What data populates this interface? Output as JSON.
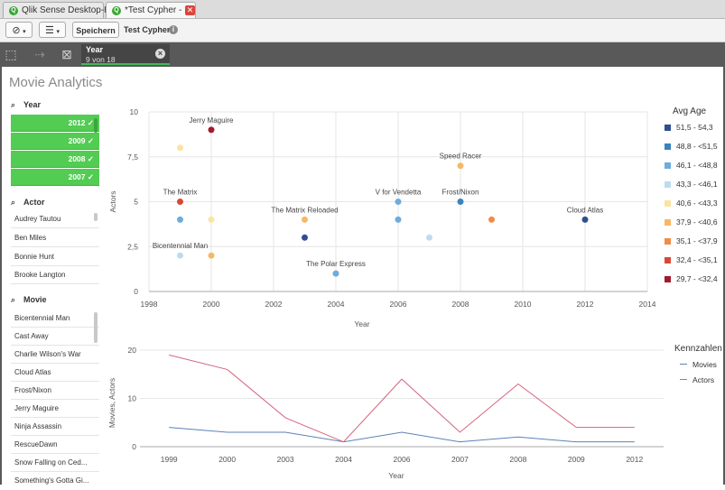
{
  "browser_tabs": [
    {
      "label": "Qlik Sense Desktop-Hub",
      "active": false
    },
    {
      "label": "*Test Cypher - ...",
      "active": true
    }
  ],
  "toolbar": {
    "save_label": "Speichern",
    "app_title": "Test Cypher"
  },
  "selection": {
    "field": "Year",
    "value": "9 von 18"
  },
  "sheet_title": "Movie Analytics",
  "filters": {
    "year": {
      "title": "Year",
      "selected": [
        "2012",
        "2009",
        "2008",
        "2007"
      ]
    },
    "actor": {
      "title": "Actor",
      "items": [
        "Audrey Tautou",
        "Ben Miles",
        "Bonnie Hunt",
        "Brooke Langton"
      ]
    },
    "movie": {
      "title": "Movie",
      "items": [
        "Bicentennial Man",
        "Cast Away",
        "Charlie Wilson's War",
        "Cloud Atlas",
        "Frost/Nixon",
        "Jerry Maguire",
        "Ninja Assassin",
        "RescueDawn",
        "Snow Falling on Ced...",
        "Something's Gotta Gi..."
      ]
    }
  },
  "colors": {
    "selected_green": "#52cc52",
    "movies_line": "#5b82b8",
    "actors_line": "#d4657f"
  },
  "chart_data": [
    {
      "type": "scatter",
      "title": "",
      "xlabel": "Year",
      "ylabel": "Actors",
      "xlim": [
        1998,
        2014
      ],
      "ylim": [
        0,
        10
      ],
      "x_ticks": [
        "1998",
        "2000",
        "2002",
        "2004",
        "2006",
        "2008",
        "2010",
        "2012",
        "2014"
      ],
      "y_ticks": [
        "0",
        "2,5",
        "5",
        "7,5",
        "10"
      ],
      "legend": {
        "title": "Avg Age",
        "items": [
          {
            "label": "51,5 - 54,3",
            "color": "#2f4f8f"
          },
          {
            "label": "48,8 - <51,5",
            "color": "#3a83be"
          },
          {
            "label": "46,1 - <48,8",
            "color": "#6eacdc"
          },
          {
            "label": "43,3 - <46,1",
            "color": "#bcdcf0"
          },
          {
            "label": "40,6 - <43,3",
            "color": "#fde3a1"
          },
          {
            "label": "37,9 - <40,6",
            "color": "#f7b865"
          },
          {
            "label": "35,1 - <37,9",
            "color": "#ef8c4b"
          },
          {
            "label": "32,4 - <35,1",
            "color": "#d94734"
          },
          {
            "label": "29,7 - <32,4",
            "color": "#a31a2e"
          }
        ]
      },
      "points": [
        {
          "x": 2000,
          "y": 9,
          "label": "Jerry Maguire",
          "color": "#a31a2e"
        },
        {
          "x": 1999,
          "y": 8,
          "label": "",
          "color": "#fde3a1"
        },
        {
          "x": 1999,
          "y": 5,
          "label": "The Matrix",
          "color": "#d94734"
        },
        {
          "x": 1999,
          "y": 4,
          "label": "",
          "color": "#6eacdc"
        },
        {
          "x": 2000,
          "y": 4,
          "label": "",
          "color": "#fde3a1"
        },
        {
          "x": 1999,
          "y": 2,
          "label": "Bicentennial Man",
          "color": "#bcdcf0"
        },
        {
          "x": 2000,
          "y": 2,
          "label": "",
          "color": "#f7b865"
        },
        {
          "x": 2003,
          "y": 4,
          "label": "The Matrix Reloaded",
          "color": "#f7b865"
        },
        {
          "x": 2003,
          "y": 3,
          "label": "",
          "color": "#2f4f8f"
        },
        {
          "x": 2004,
          "y": 1,
          "label": "The Polar Express",
          "color": "#6eacdc"
        },
        {
          "x": 2006,
          "y": 5,
          "label": "V for Vendetta",
          "color": "#6eacdc"
        },
        {
          "x": 2006,
          "y": 4,
          "label": "",
          "color": "#6eacdc"
        },
        {
          "x": 2007,
          "y": 3,
          "label": "",
          "color": "#bcdcf0"
        },
        {
          "x": 2008,
          "y": 7,
          "label": "Speed Racer",
          "color": "#f7b865"
        },
        {
          "x": 2008,
          "y": 5,
          "label": "Frost/Nixon",
          "color": "#3a83be"
        },
        {
          "x": 2009,
          "y": 4,
          "label": "",
          "color": "#ef8c4b"
        },
        {
          "x": 2012,
          "y": 4,
          "label": "Cloud Atlas",
          "color": "#2f4f8f"
        }
      ]
    },
    {
      "type": "line",
      "title": "",
      "xlabel": "Year",
      "ylabel": "Movies, Actors",
      "categories": [
        "1999",
        "2000",
        "2003",
        "2004",
        "2006",
        "2007",
        "2008",
        "2009",
        "2012"
      ],
      "ylim": [
        0,
        20
      ],
      "y_ticks": [
        "0",
        "10",
        "20"
      ],
      "legend_title": "Kennzahlen",
      "series": [
        {
          "name": "Movies",
          "color": "#5b82b8",
          "values": [
            4,
            3,
            3,
            1,
            3,
            1,
            2,
            1,
            1
          ]
        },
        {
          "name": "Actors",
          "color": "#d4657f",
          "values": [
            19,
            16,
            6,
            1,
            14,
            3,
            13,
            4,
            4
          ]
        }
      ]
    }
  ]
}
